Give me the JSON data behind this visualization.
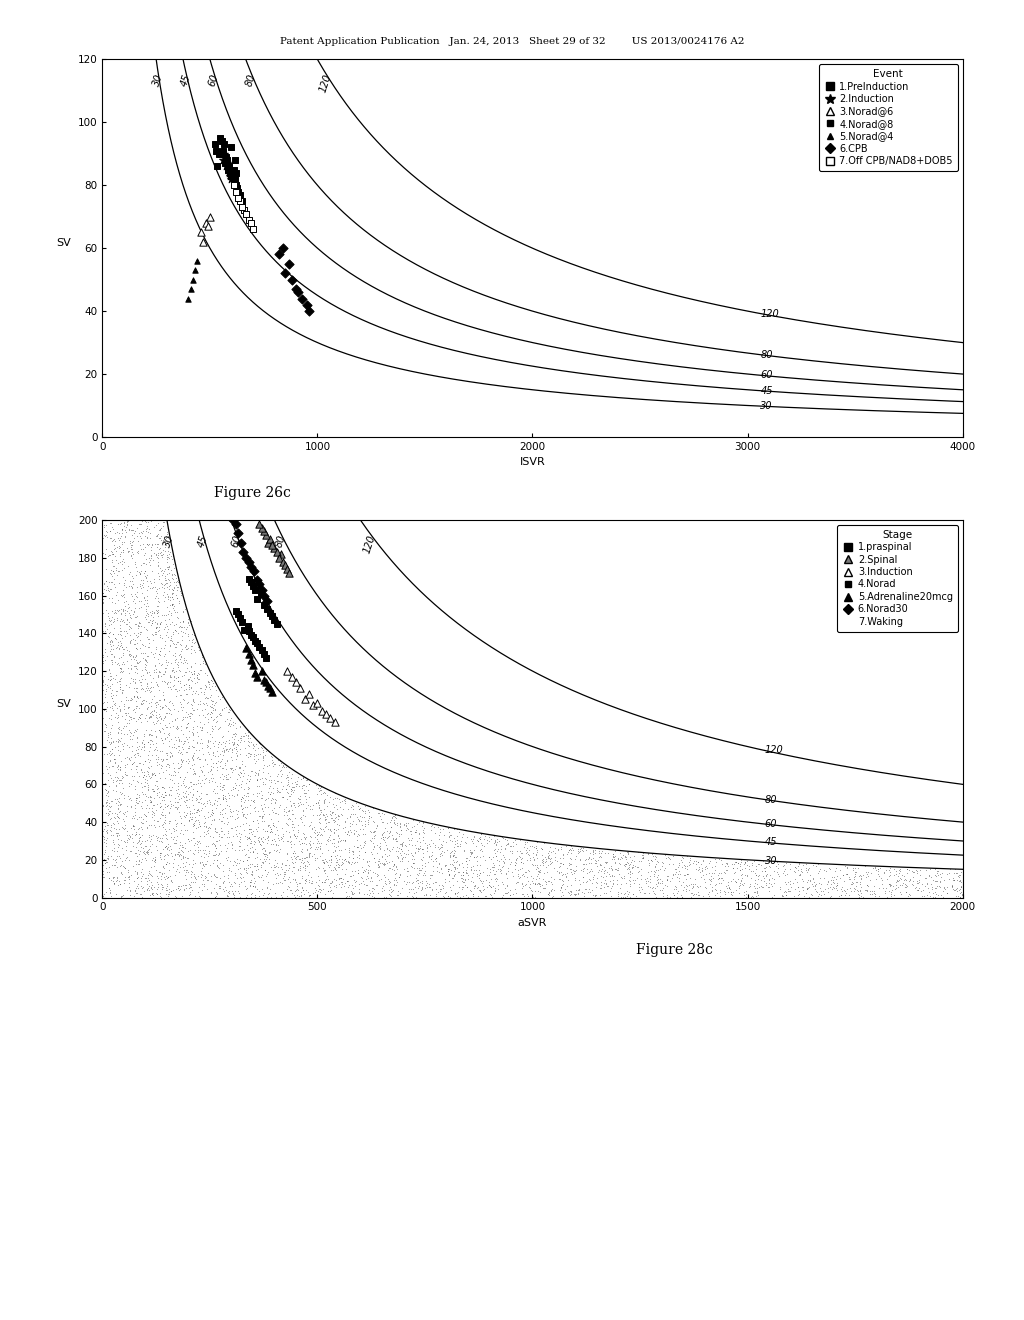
{
  "header_text": "Patent Application Publication   Jan. 24, 2013   Sheet 29 of 32        US 2013/0024176 A2",
  "fig1": {
    "title": "Figure 26c",
    "xlabel": "ISVR",
    "ylabel": "SV",
    "xlim": [
      0,
      4000
    ],
    "ylim": [
      0,
      120
    ],
    "xticks": [
      0,
      1000,
      2000,
      3000,
      4000
    ],
    "yticks": [
      0,
      20,
      40,
      60,
      80,
      100,
      120
    ],
    "co_curves": [
      30,
      45,
      60,
      80,
      120
    ],
    "scatter": {
      "event1": {
        "x": [
          550,
          580,
          600,
          560,
          570,
          590,
          575,
          565,
          585,
          595,
          555,
          605,
          545,
          610,
          540,
          615,
          535,
          620,
          530,
          525
        ],
        "y": [
          90,
          88,
          92,
          91,
          87,
          86,
          89,
          93,
          85,
          84,
          94,
          83,
          95,
          82,
          90,
          88,
          86,
          84,
          91,
          93
        ],
        "marker": "s",
        "fc": "black",
        "ec": "black",
        "size": 22
      },
      "event2": {
        "x": [
          560,
          575,
          590,
          565,
          580,
          570,
          585,
          595,
          555,
          600
        ],
        "y": [
          88,
          86,
          84,
          90,
          87,
          89,
          85,
          83,
          91,
          82
        ],
        "marker": "*",
        "fc": "black",
        "ec": "black",
        "size": 35
      },
      "event3": {
        "x": [
          480,
          460,
          500,
          470,
          490
        ],
        "y": [
          68,
          65,
          70,
          62,
          67
        ],
        "marker": "^",
        "fc": "white",
        "ec": "black",
        "size": 28
      },
      "event4": {
        "x": [
          600,
          620,
          640,
          610,
          630,
          650,
          605,
          625,
          615,
          635
        ],
        "y": [
          83,
          80,
          77,
          85,
          78,
          75,
          84,
          79,
          82,
          76
        ],
        "marker": "s",
        "fc": "black",
        "ec": "black",
        "size": 15
      },
      "event5": {
        "x": [
          420,
          410,
          430,
          400,
          440
        ],
        "y": [
          50,
          47,
          53,
          44,
          56
        ],
        "marker": "^",
        "fc": "black",
        "ec": "black",
        "size": 15
      },
      "event6": {
        "x": [
          850,
          900,
          950,
          820,
          880,
          930,
          870,
          910,
          840,
          960
        ],
        "y": [
          52,
          47,
          42,
          58,
          50,
          44,
          55,
          46,
          60,
          40
        ],
        "marker": "D",
        "fc": "black",
        "ec": "black",
        "size": 22
      },
      "event7": {
        "x": [
          640,
          660,
          680,
          620,
          700,
          630,
          670,
          650,
          690,
          610
        ],
        "y": [
          75,
          72,
          69,
          78,
          66,
          76,
          71,
          73,
          68,
          80
        ],
        "marker": "s",
        "fc": "white",
        "ec": "black",
        "size": 22
      }
    }
  },
  "fig2": {
    "title": "Figure 28c",
    "xlabel": "aSVR",
    "ylabel": "SV",
    "xlim": [
      0,
      2000
    ],
    "ylim": [
      0,
      200
    ],
    "xticks": [
      0,
      500,
      1000,
      1500,
      2000
    ],
    "yticks": [
      0,
      20,
      40,
      60,
      80,
      100,
      120,
      140,
      160,
      180,
      200
    ],
    "co_curves": [
      30,
      45,
      60,
      80,
      120
    ],
    "scatter": {
      "stage1": {
        "x": [
          330,
          345,
          355,
          338,
          350,
          340,
          360,
          325,
          365,
          320,
          370,
          315,
          375,
          310,
          380
        ],
        "y": [
          142,
          139,
          136,
          144,
          138,
          141,
          135,
          146,
          133,
          148,
          131,
          150,
          129,
          152,
          127
        ],
        "marker": "s",
        "fc": "black",
        "ec": "black",
        "size": 22
      },
      "stage2": {
        "x": [
          385,
          400,
          415,
          390,
          405,
          395,
          410,
          380,
          420,
          375,
          425,
          370,
          430,
          365,
          435
        ],
        "y": [
          188,
          185,
          182,
          190,
          183,
          187,
          180,
          192,
          178,
          194,
          176,
          196,
          174,
          198,
          172
        ],
        "marker": "^",
        "fc": "#777777",
        "ec": "black",
        "size": 28
      },
      "stage3": {
        "x": [
          470,
          490,
          510,
          480,
          500,
          460,
          520,
          450,
          530,
          440,
          540,
          430
        ],
        "y": [
          105,
          102,
          99,
          108,
          103,
          111,
          97,
          114,
          95,
          117,
          93,
          120
        ],
        "marker": "^",
        "fc": "white",
        "ec": "black",
        "size": 28
      },
      "stage4": {
        "x": [
          360,
          375,
          390,
          368,
          382,
          355,
          395,
          350,
          400,
          345,
          405,
          340
        ],
        "y": [
          158,
          155,
          151,
          161,
          153,
          163,
          149,
          165,
          147,
          167,
          145,
          169
        ],
        "marker": "s",
        "fc": "black",
        "ec": "black",
        "size": 15
      },
      "stage5": {
        "x": [
          370,
          360,
          380,
          350,
          390,
          355,
          375,
          345,
          385,
          340,
          395,
          335
        ],
        "y": [
          120,
          117,
          114,
          123,
          111,
          119,
          115,
          126,
          112,
          129,
          109,
          132
        ],
        "marker": "^",
        "fc": "black",
        "ec": "black",
        "size": 28
      },
      "stage6": {
        "x": [
          340,
          328,
          352,
          322,
          360,
          334,
          346,
          316,
          364,
          310,
          370,
          304,
          376,
          298,
          382
        ],
        "y": [
          178,
          183,
          173,
          188,
          168,
          180,
          175,
          193,
          166,
          198,
          163,
          200,
          160,
          203,
          157
        ],
        "marker": "D",
        "fc": "black",
        "ec": "black",
        "size": 22
      }
    }
  },
  "bg_color": "#ffffff",
  "curve_color": "#000000",
  "curve_lw": 0.9
}
